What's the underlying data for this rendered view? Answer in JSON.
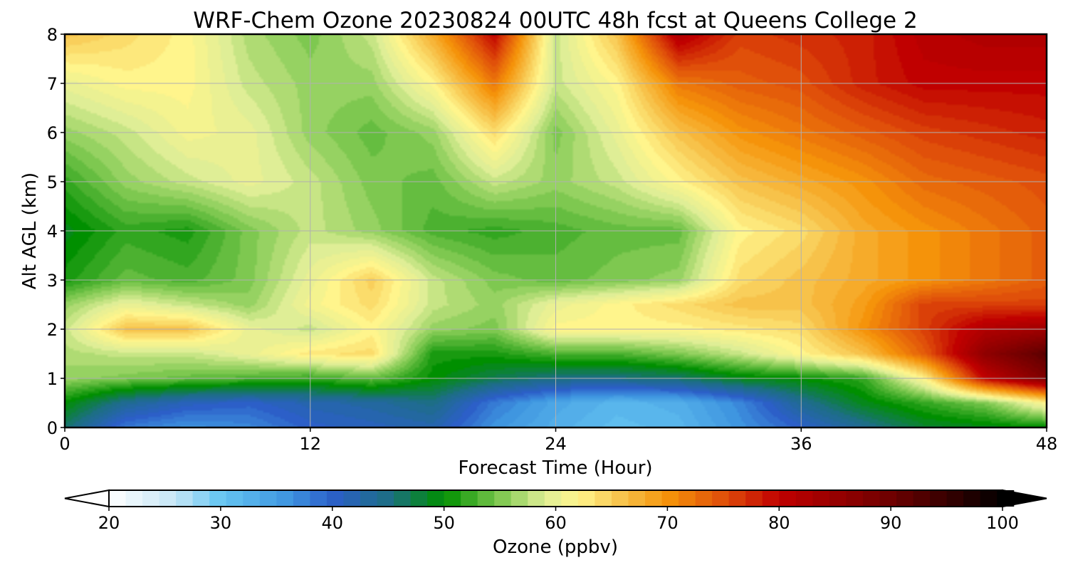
{
  "chart_data": {
    "type": "heatmap",
    "title": "WRF-Chem Ozone  20230824 00UTC 48h fcst at Queens College 2",
    "xlabel": "Forecast Time (Hour)",
    "ylabel": "Alt AGL (km)",
    "xlim": [
      0,
      48
    ],
    "ylim": [
      0,
      8
    ],
    "x_ticks": [
      0,
      12,
      24,
      36,
      48
    ],
    "y_ticks": [
      0,
      1,
      2,
      3,
      4,
      5,
      6,
      7,
      8
    ],
    "grid": true,
    "colorbar": {
      "label": "Ozone  (ppbv)",
      "min": 20,
      "max": 100,
      "ticks": [
        20,
        30,
        40,
        50,
        60,
        70,
        80,
        90,
        100
      ],
      "extend": "both",
      "stops": [
        {
          "value": 20,
          "color": "#ffffff"
        },
        {
          "value": 26,
          "color": "#c5e6f6"
        },
        {
          "value": 30,
          "color": "#66c6f2"
        },
        {
          "value": 36,
          "color": "#3f96e0"
        },
        {
          "value": 40,
          "color": "#2c5fc8"
        },
        {
          "value": 45,
          "color": "#1d6e86"
        },
        {
          "value": 50,
          "color": "#008f00"
        },
        {
          "value": 55,
          "color": "#7ec850"
        },
        {
          "value": 59,
          "color": "#dfee96"
        },
        {
          "value": 62,
          "color": "#fff58c"
        },
        {
          "value": 66,
          "color": "#f7c24a"
        },
        {
          "value": 70,
          "color": "#f5930a"
        },
        {
          "value": 75,
          "color": "#e0500a"
        },
        {
          "value": 80,
          "color": "#c00000"
        },
        {
          "value": 90,
          "color": "#6e0000"
        },
        {
          "value": 100,
          "color": "#000000"
        }
      ]
    },
    "hours": [
      0,
      3,
      6,
      9,
      12,
      15,
      18,
      21,
      24,
      27,
      30,
      33,
      36,
      39,
      42,
      45,
      48
    ],
    "altitudes_km": [
      0,
      0.5,
      1,
      1.5,
      2,
      2.5,
      3,
      4,
      5,
      6,
      7,
      8
    ],
    "ozone_ppbv": [
      [
        46,
        38,
        36,
        37,
        40,
        41,
        42,
        36,
        33,
        31,
        32,
        36,
        40,
        44,
        48,
        49,
        50
      ],
      [
        50,
        44,
        41,
        40,
        42,
        43,
        45,
        38,
        34,
        32,
        33,
        37,
        44,
        49,
        52,
        55,
        62
      ],
      [
        56,
        55,
        54,
        53,
        52,
        54,
        50,
        47,
        45,
        45,
        46,
        49,
        50,
        52,
        62,
        80,
        88
      ],
      [
        57,
        58,
        58,
        60,
        63,
        64,
        51,
        51,
        53,
        53,
        55,
        58,
        62,
        66,
        74,
        86,
        92
      ],
      [
        58,
        66,
        66,
        60,
        58,
        62,
        56,
        55,
        62,
        62,
        62,
        63,
        64,
        70,
        76,
        82,
        84
      ],
      [
        56,
        60,
        58,
        56,
        61,
        64,
        58,
        56,
        60,
        62,
        64,
        66,
        66,
        69,
        76,
        76,
        76
      ],
      [
        51,
        54,
        53,
        55,
        60,
        65,
        58,
        55,
        54,
        55,
        56,
        64,
        66,
        68,
        70,
        72,
        74
      ],
      [
        49,
        52,
        51,
        55,
        58,
        56,
        53,
        52,
        53,
        54,
        54,
        62,
        64,
        68,
        70,
        72,
        74
      ],
      [
        52,
        56,
        58,
        60,
        58,
        55,
        54,
        58,
        56,
        58,
        62,
        66,
        68,
        70,
        73,
        74,
        75
      ],
      [
        56,
        58,
        61,
        60,
        56,
        54,
        56,
        64,
        55,
        60,
        66,
        70,
        72,
        74,
        76,
        77,
        78
      ],
      [
        60,
        62,
        62,
        58,
        56,
        56,
        62,
        72,
        58,
        62,
        72,
        74,
        75,
        78,
        80,
        80,
        80
      ],
      [
        66,
        64,
        62,
        57,
        55,
        58,
        68,
        80,
        58,
        66,
        82,
        76,
        77,
        78,
        81,
        82,
        82
      ]
    ]
  }
}
